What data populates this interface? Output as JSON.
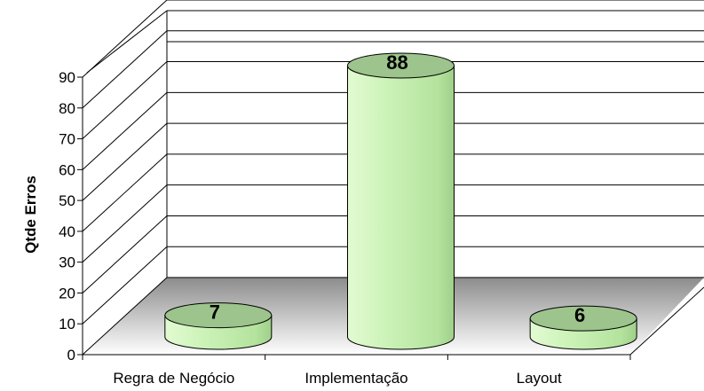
{
  "chart_data": {
    "type": "bar",
    "style": "3d-cylinder",
    "categories": [
      "Regra de Negócio",
      "Implementação",
      "Layout"
    ],
    "values": [
      7,
      88,
      6
    ],
    "ylabel": "Qtde Erros",
    "xlabel": "",
    "ylim": [
      0,
      90
    ],
    "yticks": [
      0,
      10,
      20,
      30,
      40,
      50,
      60,
      70,
      80,
      90
    ],
    "yticks_text": [
      "0",
      "10",
      "20",
      "30",
      "40",
      "50",
      "60",
      "70",
      "80",
      "90"
    ],
    "data_labels": [
      "7",
      "88",
      "6"
    ],
    "grid": true,
    "legend": "none",
    "colors": {
      "bar_fill": "#c8f0b4",
      "bar_top": "#9cc48c",
      "bar_stroke": "#000000",
      "gridline": "#000000",
      "floor": "#9a9a9a"
    }
  }
}
